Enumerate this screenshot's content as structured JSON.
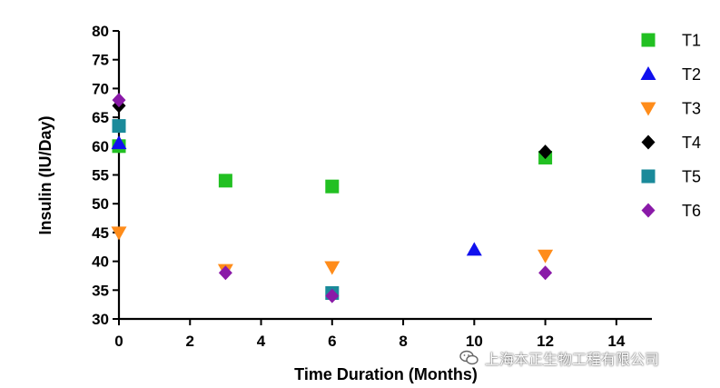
{
  "chart_data": {
    "type": "scatter",
    "xlabel": "Time Duration (Months)",
    "ylabel": "Insulin (IU/Day)",
    "xlim": [
      0,
      15
    ],
    "ylim": [
      30,
      80
    ],
    "x_ticks": [
      0,
      2,
      4,
      6,
      8,
      10,
      12,
      14
    ],
    "y_ticks": [
      30,
      35,
      40,
      45,
      50,
      55,
      60,
      65,
      70,
      75,
      80
    ],
    "grid": false,
    "legend_position": "right",
    "series": [
      {
        "name": "T1",
        "marker": "square",
        "color": "#22c022",
        "points": [
          {
            "x": 0,
            "y": 60
          },
          {
            "x": 3,
            "y": 54
          },
          {
            "x": 6,
            "y": 53
          },
          {
            "x": 12,
            "y": 58
          }
        ]
      },
      {
        "name": "T2",
        "marker": "triangle-up",
        "color": "#1010ee",
        "points": [
          {
            "x": 0,
            "y": 60.5
          },
          {
            "x": 10,
            "y": 42
          }
        ]
      },
      {
        "name": "T3",
        "marker": "triangle-down",
        "color": "#ff8c1a",
        "points": [
          {
            "x": 0,
            "y": 45
          },
          {
            "x": 3,
            "y": 38.5
          },
          {
            "x": 6,
            "y": 39
          },
          {
            "x": 12,
            "y": 41
          }
        ]
      },
      {
        "name": "T4",
        "marker": "diamond",
        "color": "#000000",
        "points": [
          {
            "x": 0,
            "y": 67
          },
          {
            "x": 12,
            "y": 59
          }
        ]
      },
      {
        "name": "T5",
        "marker": "square",
        "color": "#1a8a9a",
        "points": [
          {
            "x": 0,
            "y": 63.5
          },
          {
            "x": 6,
            "y": 34.5
          }
        ]
      },
      {
        "name": "T6",
        "marker": "diamond",
        "color": "#8a1aa8",
        "points": [
          {
            "x": 0,
            "y": 68
          },
          {
            "x": 3,
            "y": 38
          },
          {
            "x": 6,
            "y": 34
          },
          {
            "x": 12,
            "y": 38
          }
        ]
      }
    ]
  },
  "watermark": {
    "text": "上海本正生物工程有限公司",
    "icon": "wechat-icon"
  }
}
